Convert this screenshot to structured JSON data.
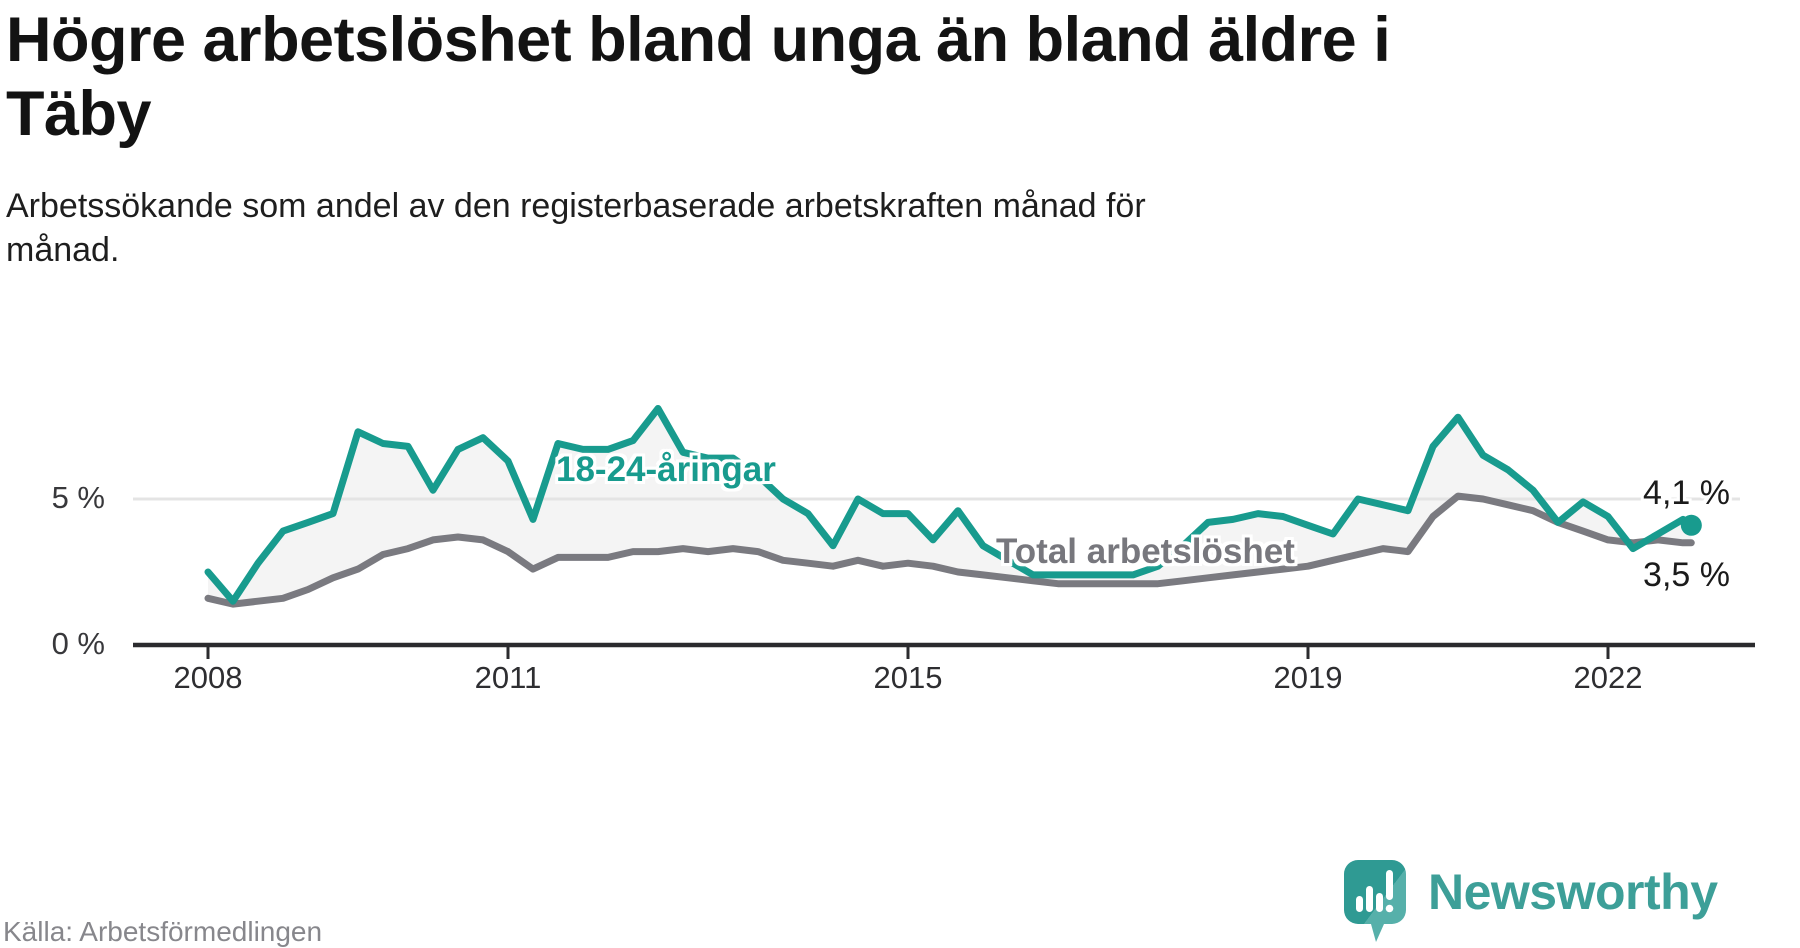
{
  "title": "Högre arbetslöshet bland unga än bland äldre i\nTäby",
  "subtitle": "Arbetssökande som andel av den registerbaserade arbetskraften månad för\nmånad.",
  "source": "Källa: Arbetsförmedlingen",
  "branding": {
    "name": "Newsworthy",
    "icon": "speech-bubble-bar-chart-icon"
  },
  "colors": {
    "youth_line": "#189b8e",
    "total_line": "#7a7a80",
    "band_fill": "#f4f4f4",
    "gridline": "#e4e4e4",
    "axis": "#2b2b2e",
    "value_label": "#1b1b1b",
    "brand_teal": "#3d9f98"
  },
  "chart_data": {
    "type": "line",
    "title": "Högre arbetslöshet bland unga än bland äldre i Täby",
    "xlabel": "",
    "ylabel": "Arbetssökande som andel av den registerbaserade arbetskraften",
    "unit": "%",
    "grid": "horizontal line at 5 % only",
    "legend_position": "inline labels on lines",
    "ylim": [
      0,
      8.6
    ],
    "x_ticks": [
      "2008",
      "2011",
      "2015",
      "2019",
      "2022"
    ],
    "y_ticks": [
      {
        "value": 0,
        "label": "0 %"
      },
      {
        "value": 5,
        "label": "5 %"
      }
    ],
    "x": [
      "2008-01",
      "2008-04",
      "2008-07",
      "2008-10",
      "2009-01",
      "2009-04",
      "2009-07",
      "2009-10",
      "2010-01",
      "2010-04",
      "2010-07",
      "2010-10",
      "2011-01",
      "2011-04",
      "2011-07",
      "2011-10",
      "2012-01",
      "2012-04",
      "2012-07",
      "2012-10",
      "2013-01",
      "2013-04",
      "2013-07",
      "2013-10",
      "2014-01",
      "2014-04",
      "2014-07",
      "2014-10",
      "2015-01",
      "2015-04",
      "2015-07",
      "2015-10",
      "2016-01",
      "2016-04",
      "2016-07",
      "2016-10",
      "2017-01",
      "2017-04",
      "2017-07",
      "2017-10",
      "2018-01",
      "2018-04",
      "2018-07",
      "2018-10",
      "2019-01",
      "2019-04",
      "2019-07",
      "2019-10",
      "2020-01",
      "2020-04",
      "2020-07",
      "2020-10",
      "2021-01",
      "2021-04",
      "2021-07",
      "2021-10",
      "2022-01",
      "2022-04",
      "2022-07",
      "2022-10",
      "2022-11"
    ],
    "series": [
      {
        "name": "18-24-åringar",
        "color": "#189b8e",
        "end_label": "4,1 %",
        "end_value": 4.1,
        "values": [
          2.5,
          1.5,
          2.8,
          3.9,
          4.2,
          4.5,
          7.3,
          6.9,
          6.8,
          5.3,
          6.7,
          7.1,
          6.3,
          4.3,
          6.9,
          6.7,
          6.7,
          7.0,
          8.1,
          6.6,
          6.4,
          6.4,
          5.8,
          5.0,
          4.5,
          3.4,
          5.0,
          4.5,
          4.5,
          3.6,
          4.6,
          3.4,
          2.9,
          2.4,
          2.4,
          2.4,
          2.4,
          2.4,
          2.7,
          3.4,
          4.2,
          4.3,
          4.5,
          4.4,
          4.1,
          3.8,
          5.0,
          4.8,
          4.6,
          6.8,
          7.8,
          6.5,
          6.0,
          5.3,
          4.2,
          4.9,
          4.4,
          3.3,
          3.8,
          4.3,
          4.1
        ]
      },
      {
        "name": "Total arbetslöshet",
        "color": "#7a7a80",
        "end_label": "3,5 %",
        "end_value": 3.5,
        "values": [
          1.6,
          1.4,
          1.5,
          1.6,
          1.9,
          2.3,
          2.6,
          3.1,
          3.3,
          3.6,
          3.7,
          3.6,
          3.2,
          2.6,
          3.0,
          3.0,
          3.0,
          3.2,
          3.2,
          3.3,
          3.2,
          3.3,
          3.2,
          2.9,
          2.8,
          2.7,
          2.9,
          2.7,
          2.8,
          2.7,
          2.5,
          2.4,
          2.3,
          2.2,
          2.1,
          2.1,
          2.1,
          2.1,
          2.1,
          2.2,
          2.3,
          2.4,
          2.5,
          2.6,
          2.7,
          2.9,
          3.1,
          3.3,
          3.2,
          4.4,
          5.1,
          5.0,
          4.8,
          4.6,
          4.2,
          3.9,
          3.6,
          3.5,
          3.6,
          3.5,
          3.5
        ]
      }
    ]
  }
}
